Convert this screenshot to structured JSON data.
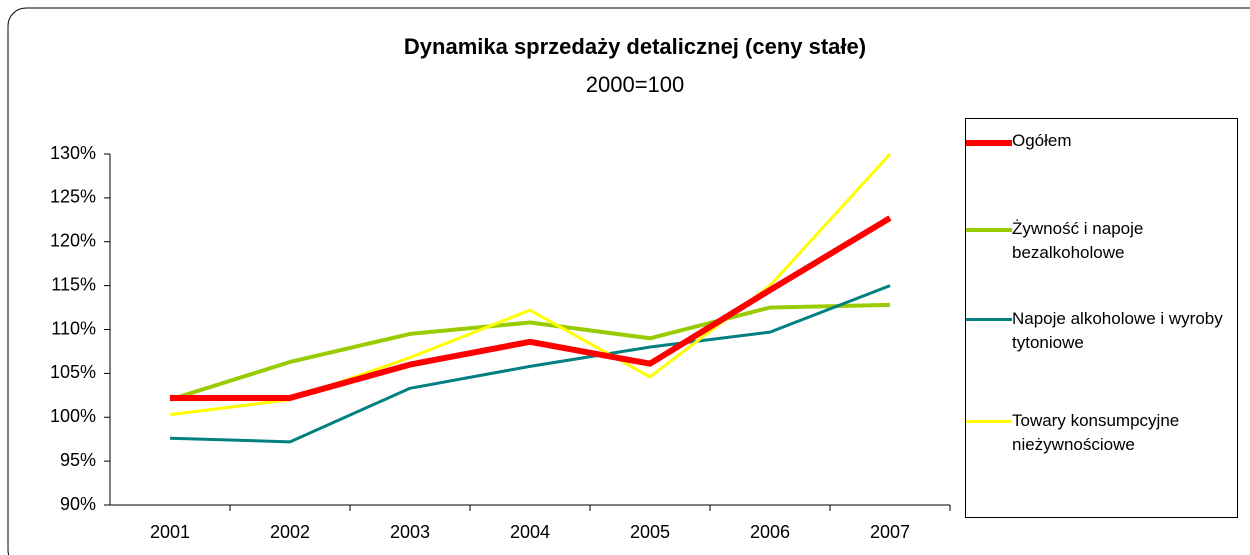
{
  "chart_data": {
    "type": "line",
    "title": "Dynamika sprzedaży detalicznej  (ceny stałe)",
    "subtitle": "2000=100",
    "categories": [
      "2001",
      "2002",
      "2003",
      "2004",
      "2005",
      "2006",
      "2007"
    ],
    "series": [
      {
        "name": "Ogółem",
        "color": "#ff0000",
        "values": [
          102.2,
          102.2,
          106,
          108.6,
          106.1,
          114.5,
          122.7
        ]
      },
      {
        "name": "Żywność i napoje bezalkoholowe",
        "color": "#99cc00",
        "values": [
          102,
          106.3,
          109.5,
          110.8,
          109,
          112.5,
          112.8
        ]
      },
      {
        "name": "Napoje alkoholowe i wyroby tytoniowe",
        "color": "#008080",
        "values": [
          97.6,
          97.2,
          103.3,
          105.8,
          108,
          109.7,
          115
        ]
      },
      {
        "name": "Towary konsumpcyjne nieżywnościowe",
        "color": "#ffff00",
        "values": [
          100.3,
          102,
          106.8,
          112.2,
          104.6,
          115,
          130
        ]
      }
    ],
    "ylim": [
      90,
      130
    ],
    "yticks": [
      {
        "value": 90,
        "label": "90%"
      },
      {
        "value": 95,
        "label": "95%"
      },
      {
        "value": 100,
        "label": "100%"
      },
      {
        "value": 105,
        "label": "105%"
      },
      {
        "value": 110,
        "label": "110%"
      },
      {
        "value": 115,
        "label": "115%"
      },
      {
        "value": 120,
        "label": "120%"
      },
      {
        "value": 125,
        "label": "125%"
      },
      {
        "value": 130,
        "label": "130%"
      }
    ],
    "legend": "right"
  }
}
